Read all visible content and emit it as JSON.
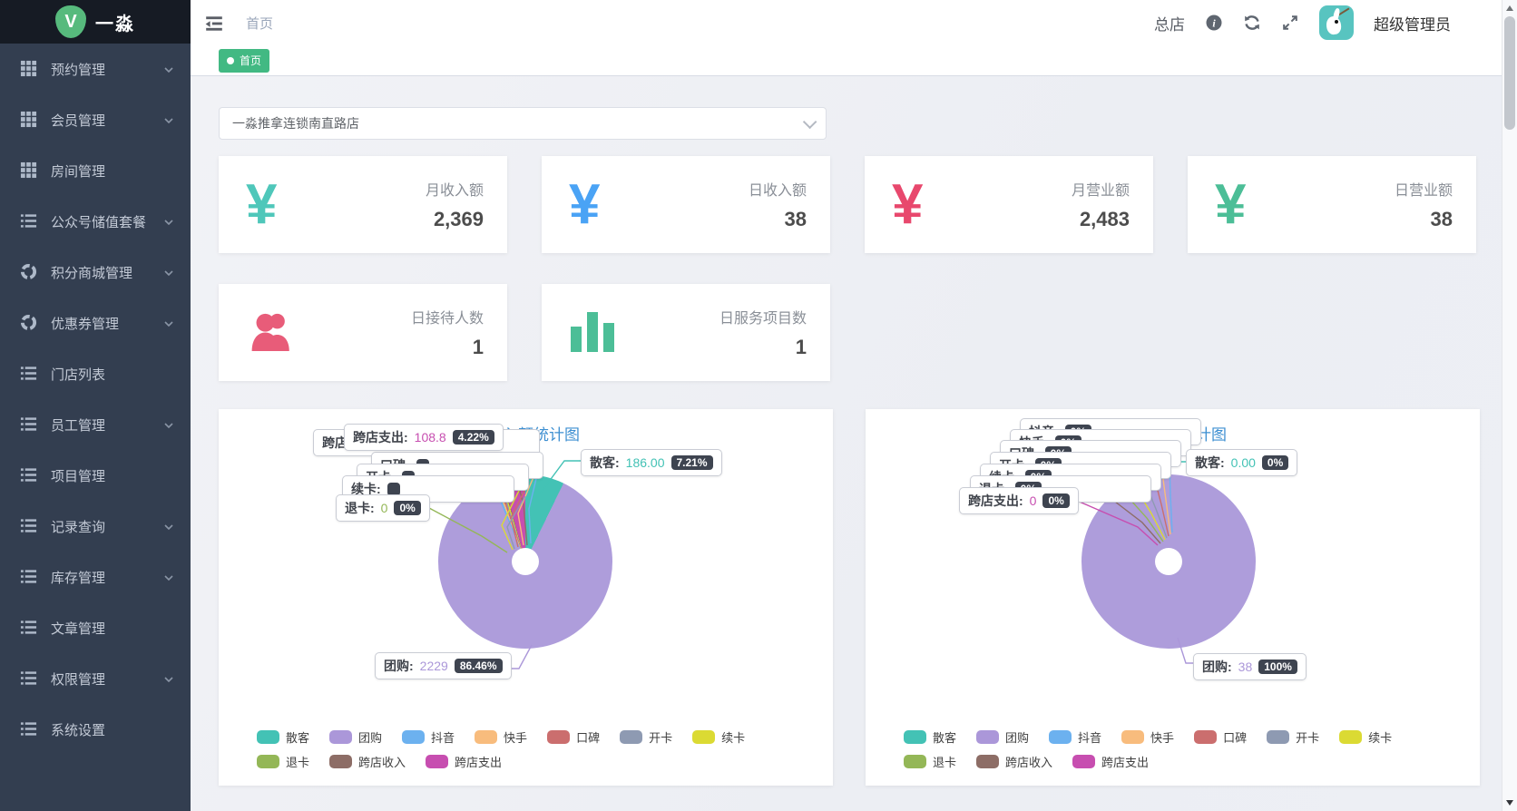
{
  "brand": {
    "name": "一淼",
    "logo_letter": "V",
    "logo_color": "#57ba7d"
  },
  "sidebar": {
    "items": [
      {
        "label": "预约管理",
        "icon": "grid",
        "expandable": true
      },
      {
        "label": "会员管理",
        "icon": "grid",
        "expandable": true
      },
      {
        "label": "房间管理",
        "icon": "grid",
        "expandable": false
      },
      {
        "label": "公众号储值套餐",
        "icon": "list",
        "expandable": true
      },
      {
        "label": "积分商城管理",
        "icon": "disc",
        "expandable": true
      },
      {
        "label": "优惠券管理",
        "icon": "disc",
        "expandable": true
      },
      {
        "label": "门店列表",
        "icon": "list",
        "expandable": false
      },
      {
        "label": "员工管理",
        "icon": "list",
        "expandable": true
      },
      {
        "label": "项目管理",
        "icon": "list",
        "expandable": false
      },
      {
        "label": "记录查询",
        "icon": "list",
        "expandable": true
      },
      {
        "label": "库存管理",
        "icon": "list",
        "expandable": true
      },
      {
        "label": "文章管理",
        "icon": "list",
        "expandable": false
      },
      {
        "label": "权限管理",
        "icon": "list",
        "expandable": true
      },
      {
        "label": "系统设置",
        "icon": "list",
        "expandable": false
      }
    ]
  },
  "header": {
    "breadcrumb": "首页",
    "store_label": "总店",
    "user_name": "超级管理员"
  },
  "tags": {
    "active_tag": "首页",
    "tag_color": "#42b983"
  },
  "filters": {
    "store_select_value": "一淼推拿连锁南直路店"
  },
  "stat_cards": [
    {
      "label": "月收入额",
      "value": "2,369",
      "icon": "yen",
      "icon_color": "#4fc7ba"
    },
    {
      "label": "日收入额",
      "value": "38",
      "icon": "yen",
      "icon_color": "#4aa3f5"
    },
    {
      "label": "月营业额",
      "value": "2,483",
      "icon": "yen",
      "icon_color": "#e8486d"
    },
    {
      "label": "日营业额",
      "value": "38",
      "icon": "yen",
      "icon_color": "#4cbe97"
    },
    {
      "label": "日接待人数",
      "value": "1",
      "icon": "people",
      "icon_color": "#e85c79"
    },
    {
      "label": "日服务项目数",
      "value": "1",
      "icon": "bars",
      "icon_color": "#4cbe97"
    }
  ],
  "legend": {
    "items": [
      {
        "name": "散客",
        "color": "#43c2b5"
      },
      {
        "name": "团购",
        "color": "#ab97d9"
      },
      {
        "name": "抖音",
        "color": "#6cb1ef"
      },
      {
        "name": "快手",
        "color": "#f8bc7d"
      },
      {
        "name": "口碑",
        "color": "#cb6e6e"
      },
      {
        "name": "开卡",
        "color": "#8e9ab2"
      },
      {
        "name": "续卡",
        "color": "#dbda33"
      },
      {
        "name": "退卡",
        "color": "#94b757"
      },
      {
        "name": "跨店收入",
        "color": "#8d6d66"
      },
      {
        "name": "跨店支出",
        "color": "#c74eb0"
      }
    ]
  },
  "charts": [
    {
      "title": "月收入额统计图",
      "callouts": {
        "top": {
          "name": "跨店支出",
          "value": "108.8",
          "percent": "4.22%",
          "color": "#c74eb0"
        },
        "stack": [
          {
            "name": "跨店收入"
          },
          {
            "name": "口碑"
          },
          {
            "name": "开卡"
          },
          {
            "name": "续卡"
          }
        ],
        "stack_bottom": {
          "name": "退卡",
          "value": "0",
          "percent": "0%",
          "color": "#94b757"
        },
        "right": {
          "name": "散客",
          "value": "186.00",
          "percent": "7.21%",
          "color": "#43c2b5"
        },
        "bottom": {
          "name": "团购",
          "value": "2229",
          "percent": "86.46%",
          "color": "#ab97d9"
        }
      }
    },
    {
      "title": "日收入额统计图",
      "callouts": {
        "stack": [
          {
            "name": "抖音",
            "percent": "0%"
          },
          {
            "name": "快手",
            "percent": "0%"
          },
          {
            "name": "口碑",
            "percent": "0%"
          },
          {
            "name": "开卡",
            "percent": "0%"
          },
          {
            "name": "续卡",
            "percent": "0%"
          },
          {
            "name": "退卡",
            "percent": "0%"
          }
        ],
        "stack_bottom": {
          "name": "跨店支出",
          "value": "0",
          "percent": "0%",
          "color": "#c74eb0"
        },
        "right": {
          "name": "散客",
          "value": "0.00",
          "percent": "0%",
          "color": "#43c2b5"
        },
        "bottom": {
          "name": "团购",
          "value": "38",
          "percent": "100%",
          "color": "#ab97d9"
        }
      }
    }
  ],
  "chart_data": [
    {
      "type": "pie",
      "title": "月收入额统计图",
      "categories": [
        "散客",
        "团购",
        "抖音",
        "快手",
        "口碑",
        "开卡",
        "续卡",
        "退卡",
        "跨店收入",
        "跨店支出"
      ],
      "visible_values": {
        "散客": 186.0,
        "团购": 2229,
        "退卡": 0,
        "跨店支出": 108.8
      },
      "visible_percents": {
        "散客": 7.21,
        "团购": 86.46,
        "退卡": 0,
        "跨店支出": 4.22
      },
      "legend_position": "bottom"
    },
    {
      "type": "pie",
      "title": "日收入额统计图",
      "categories": [
        "散客",
        "团购",
        "抖音",
        "快手",
        "口碑",
        "开卡",
        "续卡",
        "退卡",
        "跨店收入",
        "跨店支出"
      ],
      "visible_values": {
        "散客": 0.0,
        "团购": 38,
        "跨店支出": 0
      },
      "visible_percents": {
        "散客": 0,
        "团购": 100,
        "跨店支出": 0
      },
      "legend_position": "bottom"
    }
  ]
}
